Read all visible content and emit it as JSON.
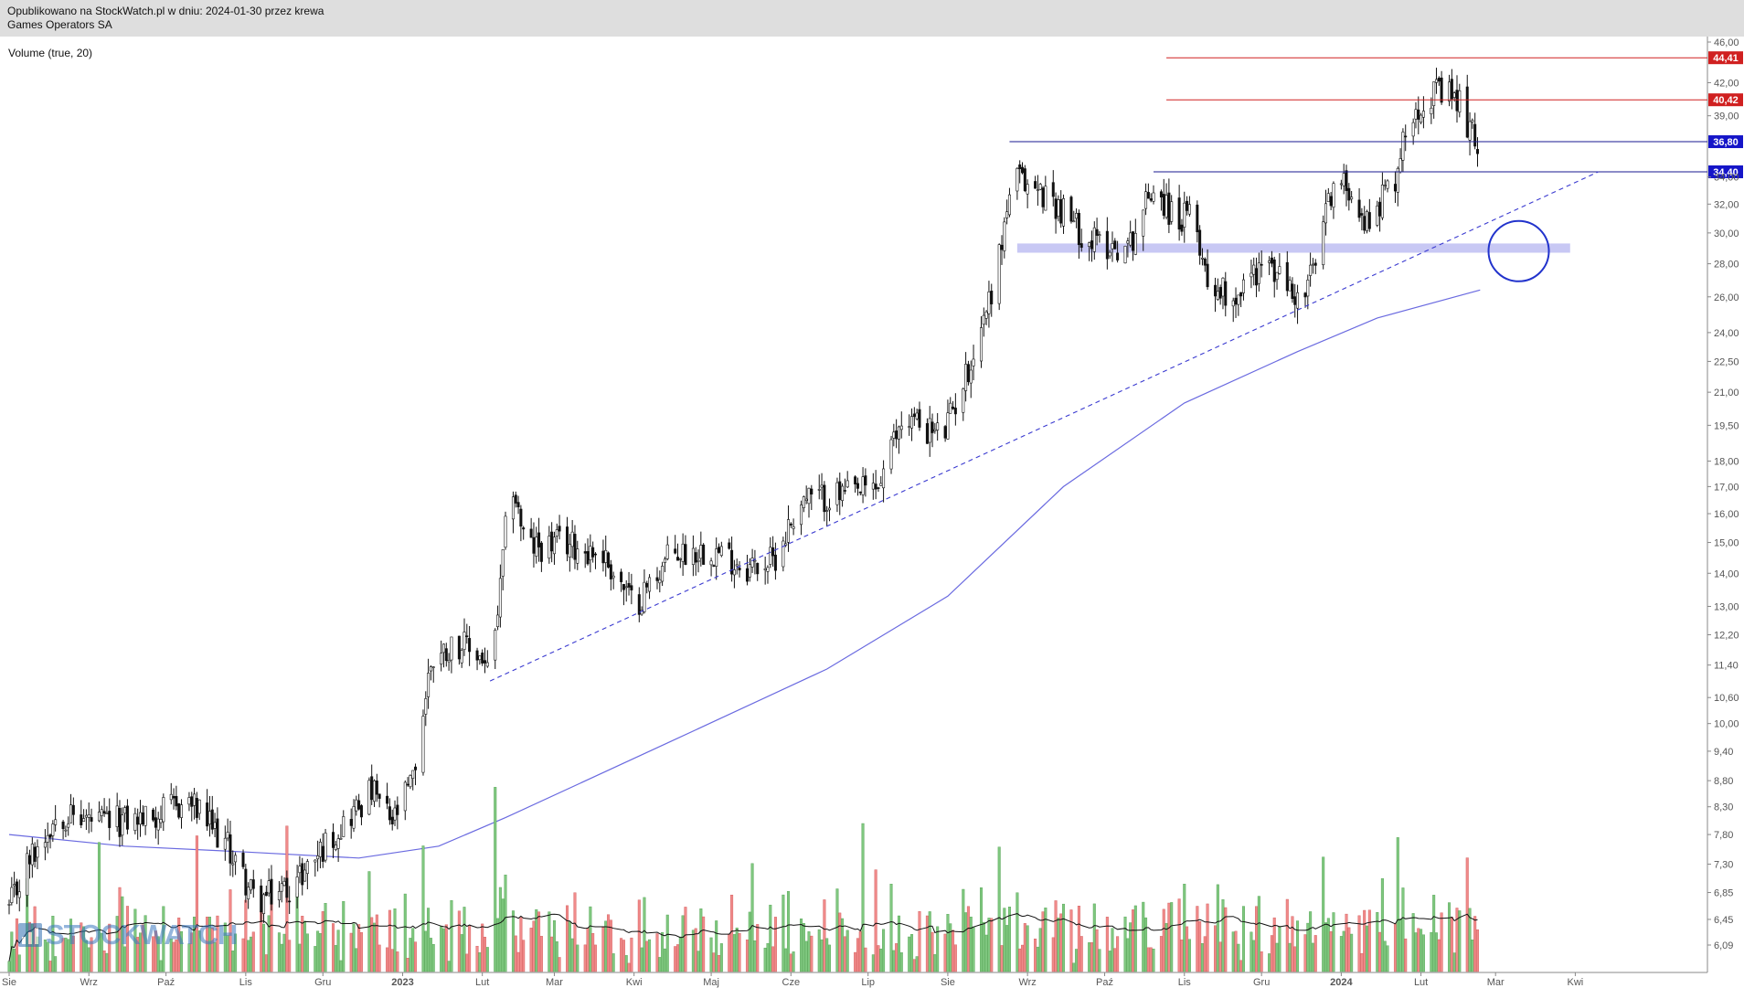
{
  "header": {
    "published": "Opublikowano na StockWatch.pl w dniu: 2024-01-30 przez krewa",
    "instrument": "Games Operators SA"
  },
  "indicator_label": "Volume (true, 20)",
  "logo_text": "STOCKWATCH",
  "colors": {
    "candle": "#111111",
    "ma_line": "#6a6ae0",
    "trend_line": "#3a3ad0",
    "resistance_red": "#d02020",
    "support_navy": "#1a1a90",
    "zone": "#c8c8f4",
    "circle": "#2233cc",
    "vol_up": "#7fc77f",
    "vol_down": "#f08a8a",
    "vol_ma": "#111111"
  },
  "chart_data": {
    "type": "candlestick",
    "title": "Games Operators SA",
    "y_scale": "log",
    "y_ticks": [
      "46,00",
      "44,41",
      "42,00",
      "40,42",
      "39,00",
      "36,80",
      "34,40",
      "34,00",
      "32,00",
      "30,00",
      "28,00",
      "26,00",
      "24,00",
      "22,50",
      "21,00",
      "19,50",
      "18,00",
      "17,00",
      "16,00",
      "15,00",
      "14,00",
      "13,00",
      "12,20",
      "11,40",
      "10,60",
      "10,00",
      "9,40",
      "8,80",
      "8,30",
      "7,80",
      "7,30",
      "6,85",
      "6,45",
      "6,09"
    ],
    "x_ticks": [
      "Sie",
      "Wrz",
      "Paź",
      "Lis",
      "Gru",
      "2023",
      "Lut",
      "Mar",
      "Kwi",
      "Maj",
      "Cze",
      "Lip",
      "Sie",
      "Wrz",
      "Paź",
      "Lis",
      "Gru",
      "2024",
      "Lut",
      "Mar",
      "Kwi"
    ],
    "price_path": [
      [
        "2022-08-01",
        6.6
      ],
      [
        "2022-08-08",
        7.3
      ],
      [
        "2022-08-20",
        8.2
      ],
      [
        "2022-09-05",
        8.0
      ],
      [
        "2022-09-25",
        8.1
      ],
      [
        "2022-10-10",
        8.4
      ],
      [
        "2022-10-25",
        7.6
      ],
      [
        "2022-11-05",
        6.7
      ],
      [
        "2022-11-20",
        7.0
      ],
      [
        "2022-12-05",
        7.8
      ],
      [
        "2022-12-20",
        8.6
      ],
      [
        "2022-12-28",
        8.0
      ],
      [
        "2023-01-05",
        8.8
      ],
      [
        "2023-01-12",
        11.5
      ],
      [
        "2023-01-22",
        12.0
      ],
      [
        "2023-02-01",
        11.6
      ],
      [
        "2023-02-04",
        11.0
      ],
      [
        "2023-02-08",
        13.5
      ],
      [
        "2023-02-12",
        17.5
      ],
      [
        "2023-02-18",
        14.8
      ],
      [
        "2023-03-05",
        15.0
      ],
      [
        "2023-03-20",
        14.6
      ],
      [
        "2023-04-01",
        13.0
      ],
      [
        "2023-04-15",
        14.6
      ],
      [
        "2023-05-01",
        14.8
      ],
      [
        "2023-05-15",
        14.2
      ],
      [
        "2023-05-25",
        14.4
      ],
      [
        "2023-06-05",
        16.5
      ],
      [
        "2023-06-25",
        16.7
      ],
      [
        "2023-07-05",
        17.0
      ],
      [
        "2023-07-15",
        20.0
      ],
      [
        "2023-07-30",
        19.0
      ],
      [
        "2023-08-10",
        22.5
      ],
      [
        "2023-08-20",
        27.5
      ],
      [
        "2023-08-26",
        34.0
      ],
      [
        "2023-09-10",
        32.5
      ],
      [
        "2023-09-25",
        29.5
      ],
      [
        "2023-10-10",
        29.0
      ],
      [
        "2023-10-20",
        33.5
      ],
      [
        "2023-10-28",
        31.0
      ],
      [
        "2023-11-05",
        31.0
      ],
      [
        "2023-11-10",
        27.0
      ],
      [
        "2023-11-20",
        26.0
      ],
      [
        "2023-12-01",
        28.0
      ],
      [
        "2023-12-10",
        27.0
      ],
      [
        "2023-12-16",
        25.5
      ],
      [
        "2023-12-22",
        28.0
      ],
      [
        "2023-12-28",
        33.0
      ],
      [
        "2024-01-05",
        33.5
      ],
      [
        "2024-01-10",
        30.5
      ],
      [
        "2024-01-15",
        32.0
      ],
      [
        "2024-01-22",
        34.0
      ],
      [
        "2024-01-28",
        39.5
      ],
      [
        "2024-02-05",
        41.0
      ],
      [
        "2024-02-15",
        40.5
      ],
      [
        "2024-02-22",
        37.0
      ],
      [
        "2024-02-24",
        36.0
      ]
    ],
    "moving_average": [
      [
        "2022-08-01",
        7.8
      ],
      [
        "2022-09-15",
        7.6
      ],
      [
        "2022-11-01",
        7.5
      ],
      [
        "2022-12-15",
        7.4
      ],
      [
        "2023-01-15",
        7.6
      ],
      [
        "2023-02-10",
        8.1
      ],
      [
        "2023-04-15",
        9.6
      ],
      [
        "2023-06-15",
        11.3
      ],
      [
        "2023-08-01",
        13.3
      ],
      [
        "2023-09-15",
        17.0
      ],
      [
        "2023-11-01",
        20.5
      ],
      [
        "2023-12-15",
        23.0
      ],
      [
        "2024-01-15",
        24.8
      ],
      [
        "2024-02-24",
        26.4
      ]
    ],
    "horizontal_levels": [
      {
        "price": 44.41,
        "label": "44,41",
        "kind": "resistance"
      },
      {
        "price": 40.42,
        "label": "40,42",
        "kind": "resistance"
      },
      {
        "price": 36.8,
        "label": "36,80",
        "kind": "support"
      },
      {
        "price": 34.4,
        "label": "34,40",
        "kind": "support"
      }
    ],
    "trend_line": [
      [
        "2023-02-04",
        11.0
      ],
      [
        "2024-04-10",
        34.4
      ]
    ],
    "support_zone": {
      "low": 28.7,
      "high": 29.3,
      "from": "2023-08-28",
      "to": "2024-03-30"
    },
    "highlight_circle": {
      "date": "2024-03-10",
      "price": 28.8
    },
    "volume_series_name": "Volume (true, 20)"
  }
}
